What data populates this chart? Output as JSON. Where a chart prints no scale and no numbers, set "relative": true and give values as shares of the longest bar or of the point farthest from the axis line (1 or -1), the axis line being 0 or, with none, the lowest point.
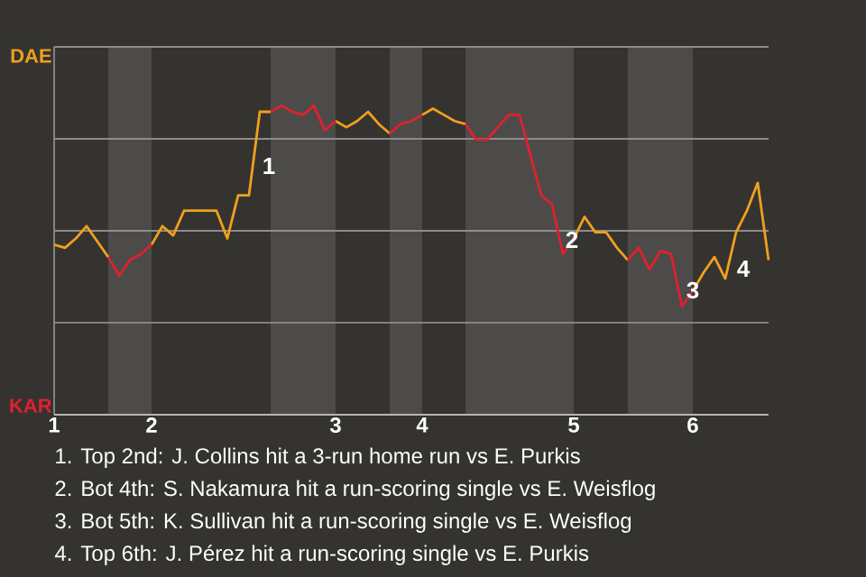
{
  "chart_data": {
    "type": "line",
    "relative": true,
    "grid": "y",
    "categories": [
      "1",
      null,
      null,
      null,
      null,
      null,
      null,
      null,
      null,
      "2",
      null,
      null,
      null,
      null,
      null,
      null,
      null,
      null,
      null,
      null,
      null,
      null,
      null,
      null,
      null,
      null,
      "3",
      null,
      null,
      null,
      null,
      null,
      null,
      null,
      "4",
      null,
      null,
      null,
      null,
      null,
      null,
      null,
      null,
      null,
      null,
      null,
      null,
      null,
      "5",
      null,
      null,
      null,
      null,
      null,
      null,
      null,
      null,
      null,
      null,
      "6",
      null,
      null,
      null,
      null,
      null,
      null,
      null
    ],
    "series": [
      {
        "name": "DAE",
        "color": "#f0a01e",
        "values": [
          0.55,
          0.54,
          0.57,
          0.61,
          0.56,
          0.51,
          null,
          null,
          null,
          0.55,
          0.61,
          0.58,
          0.66,
          0.66,
          0.66,
          0.66,
          0.57,
          0.71,
          0.71,
          0.98,
          0.98,
          null,
          null,
          null,
          null,
          null,
          0.95,
          0.93,
          0.95,
          0.98,
          0.94,
          0.91,
          null,
          null,
          0.97,
          0.99,
          0.97,
          0.95,
          0.94,
          null,
          null,
          null,
          null,
          null,
          null,
          null,
          null,
          null,
          0.57,
          0.64,
          0.59,
          0.59,
          0.54,
          0.5,
          null,
          null,
          null,
          null,
          null,
          0.4,
          0.46,
          0.51,
          0.44,
          0.59,
          0.66,
          0.75,
          0.5
        ]
      },
      {
        "name": "KAR",
        "color": "#e0202e",
        "values": [
          null,
          null,
          null,
          null,
          null,
          0.51,
          0.45,
          0.5,
          0.52,
          0.55,
          null,
          null,
          null,
          null,
          null,
          null,
          null,
          null,
          null,
          null,
          0.98,
          1.0,
          0.98,
          0.97,
          1.0,
          0.92,
          0.95,
          null,
          null,
          null,
          null,
          0.91,
          0.94,
          0.95,
          0.97,
          null,
          null,
          null,
          0.94,
          0.89,
          0.89,
          0.93,
          0.97,
          0.97,
          0.84,
          0.71,
          0.68,
          0.52,
          0.57,
          null,
          null,
          null,
          null,
          0.5,
          0.54,
          0.47,
          0.53,
          0.52,
          0.35,
          0.4,
          null,
          null,
          null,
          null,
          null,
          null,
          null
        ]
      }
    ],
    "annotations": [
      "1",
      "2",
      "3",
      "4",
      "1. Top 2nd: J. Collins hit a 3-run home run vs E. Purkis",
      "2. Bot 4th: S. Nakamura hit a run-scoring single vs E. Weisflog",
      "3. Bot 5th: K. Sullivan hit a run-scoring single vs E. Weisflog",
      "4. Top 6th: J. Pérez hit a run-scoring single vs E. Purkis"
    ]
  }
}
